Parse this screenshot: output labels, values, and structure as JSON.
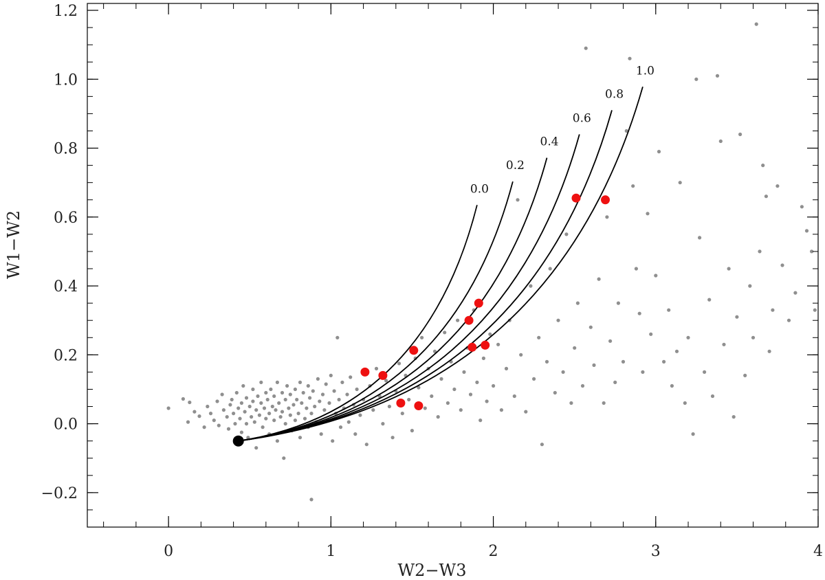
{
  "chart_data": {
    "type": "scatter",
    "title": "",
    "xlabel": "W2−W3",
    "ylabel": "W1−W2",
    "xlim": [
      -0.5,
      4.0
    ],
    "ylim": [
      -0.3,
      1.22
    ],
    "x_ticks": [
      {
        "value": 0,
        "label": "0"
      },
      {
        "value": 1,
        "label": "1"
      },
      {
        "value": 2,
        "label": "2"
      },
      {
        "value": 3,
        "label": "3"
      },
      {
        "value": 4,
        "label": "4"
      }
    ],
    "y_ticks": [
      {
        "value": -0.2,
        "label": "−0.2"
      },
      {
        "value": 0.0,
        "label": "0.0"
      },
      {
        "value": 0.2,
        "label": "0.2"
      },
      {
        "value": 0.4,
        "label": "0.4"
      },
      {
        "value": 0.6,
        "label": "0.6"
      },
      {
        "value": 0.8,
        "label": "0.8"
      },
      {
        "value": 1.0,
        "label": "1.0"
      },
      {
        "value": 1.2,
        "label": "1.2"
      }
    ],
    "x_minor_step": 0.2,
    "y_minor_step": 0.05,
    "grid": false,
    "colors": {
      "background_points": "#8f8f8f",
      "highlight_points": "#ee1111",
      "origin_point": "#000000",
      "curves": "#000000"
    },
    "origin_point": {
      "x": 0.43,
      "y": -0.05
    },
    "curves": [
      {
        "label": "0.0",
        "end": [
          1.9,
          0.635
        ]
      },
      {
        "label": "0.2",
        "end": [
          2.12,
          0.703
        ]
      },
      {
        "label": "0.4",
        "end": [
          2.33,
          0.772
        ]
      },
      {
        "label": "0.6",
        "end": [
          2.53,
          0.84
        ]
      },
      {
        "label": "0.8",
        "end": [
          2.73,
          0.91
        ]
      },
      {
        "label": "1.0",
        "end": [
          2.92,
          0.978
        ]
      }
    ],
    "highlight_points": [
      {
        "x": 1.21,
        "y": 0.15
      },
      {
        "x": 1.32,
        "y": 0.14
      },
      {
        "x": 1.51,
        "y": 0.213
      },
      {
        "x": 1.43,
        "y": 0.06
      },
      {
        "x": 1.54,
        "y": 0.052
      },
      {
        "x": 1.85,
        "y": 0.3
      },
      {
        "x": 1.91,
        "y": 0.35
      },
      {
        "x": 1.87,
        "y": 0.222
      },
      {
        "x": 1.95,
        "y": 0.228
      },
      {
        "x": 2.51,
        "y": 0.655
      },
      {
        "x": 2.69,
        "y": 0.65
      }
    ],
    "background_points": [
      [
        0.0,
        0.045
      ],
      [
        0.09,
        0.072
      ],
      [
        0.13,
        0.062
      ],
      [
        0.12,
        0.005
      ],
      [
        0.16,
        0.035
      ],
      [
        0.19,
        0.022
      ],
      [
        0.22,
        -0.01
      ],
      [
        0.24,
        0.05
      ],
      [
        0.26,
        0.03
      ],
      [
        0.28,
        0.01
      ],
      [
        0.3,
        0.065
      ],
      [
        0.31,
        -0.005
      ],
      [
        0.33,
        0.085
      ],
      [
        0.34,
        0.04
      ],
      [
        0.36,
        0.02
      ],
      [
        0.37,
        -0.015
      ],
      [
        0.38,
        0.055
      ],
      [
        0.39,
        0.07
      ],
      [
        0.4,
        0.03
      ],
      [
        0.41,
        0.0
      ],
      [
        0.42,
        0.09
      ],
      [
        0.43,
        0.045
      ],
      [
        0.44,
        0.015
      ],
      [
        0.45,
        -0.025
      ],
      [
        0.45,
        0.06
      ],
      [
        0.46,
        0.11
      ],
      [
        0.47,
        0.035
      ],
      [
        0.48,
        0.075
      ],
      [
        0.48,
        0.0
      ],
      [
        0.49,
        -0.04
      ],
      [
        0.5,
        0.05
      ],
      [
        0.51,
        0.02
      ],
      [
        0.52,
        0.1
      ],
      [
        0.52,
        0.065
      ],
      [
        0.53,
        0.005
      ],
      [
        0.54,
        0.04
      ],
      [
        0.54,
        -0.07
      ],
      [
        0.55,
        0.08
      ],
      [
        0.56,
        0.025
      ],
      [
        0.57,
        0.06
      ],
      [
        0.57,
        0.12
      ],
      [
        0.58,
        -0.01
      ],
      [
        0.59,
        0.045
      ],
      [
        0.6,
        0.09
      ],
      [
        0.6,
        0.015
      ],
      [
        0.61,
        0.07
      ],
      [
        0.62,
        0.03
      ],
      [
        0.62,
        -0.03
      ],
      [
        0.63,
        0.1
      ],
      [
        0.64,
        0.05
      ],
      [
        0.65,
        0.01
      ],
      [
        0.65,
        0.08
      ],
      [
        0.66,
        0.04
      ],
      [
        0.67,
        0.12
      ],
      [
        0.67,
        -0.05
      ],
      [
        0.68,
        0.06
      ],
      [
        0.69,
        0.02
      ],
      [
        0.7,
        0.09
      ],
      [
        0.7,
        0.035
      ],
      [
        0.71,
        -0.1
      ],
      [
        0.72,
        0.07
      ],
      [
        0.72,
        0.0
      ],
      [
        0.73,
        0.11
      ],
      [
        0.74,
        0.045
      ],
      [
        0.75,
        0.025
      ],
      [
        0.75,
        0.085
      ],
      [
        0.76,
        -0.02
      ],
      [
        0.77,
        0.055
      ],
      [
        0.78,
        0.1
      ],
      [
        0.78,
        0.01
      ],
      [
        0.79,
        0.07
      ],
      [
        0.8,
        0.03
      ],
      [
        0.81,
        0.12
      ],
      [
        0.81,
        -0.04
      ],
      [
        0.82,
        0.06
      ],
      [
        0.83,
        0.09
      ],
      [
        0.84,
        0.015
      ],
      [
        0.85,
        0.045
      ],
      [
        0.86,
        0.11
      ],
      [
        0.86,
        -0.01
      ],
      [
        0.87,
        0.075
      ],
      [
        0.88,
        0.03
      ],
      [
        0.88,
        -0.22
      ],
      [
        0.89,
        0.095
      ],
      [
        0.9,
        0.05
      ],
      [
        0.91,
        0.005
      ],
      [
        0.92,
        0.13
      ],
      [
        0.93,
        0.065
      ],
      [
        0.94,
        -0.03
      ],
      [
        0.95,
        0.085
      ],
      [
        0.96,
        0.04
      ],
      [
        0.97,
        0.115
      ],
      [
        0.98,
        0.01
      ],
      [
        0.99,
        0.06
      ],
      [
        1.0,
        0.14
      ],
      [
        1.01,
        -0.05
      ],
      [
        1.02,
        0.095
      ],
      [
        1.03,
        0.03
      ],
      [
        1.04,
        0.25
      ],
      [
        1.05,
        0.07
      ],
      [
        1.06,
        -0.01
      ],
      [
        1.07,
        0.12
      ],
      [
        1.08,
        0.045
      ],
      [
        1.1,
        0.085
      ],
      [
        1.11,
        0.005
      ],
      [
        1.12,
        0.135
      ],
      [
        1.14,
        0.055
      ],
      [
        1.15,
        -0.03
      ],
      [
        1.16,
        0.1
      ],
      [
        1.18,
        0.025
      ],
      [
        1.2,
        0.07
      ],
      [
        1.22,
        -0.06
      ],
      [
        1.24,
        0.11
      ],
      [
        1.26,
        0.04
      ],
      [
        1.28,
        0.16
      ],
      [
        1.3,
        0.08
      ],
      [
        1.32,
        0.0
      ],
      [
        1.34,
        0.125
      ],
      [
        1.36,
        0.05
      ],
      [
        1.38,
        -0.04
      ],
      [
        1.4,
        0.095
      ],
      [
        1.42,
        0.175
      ],
      [
        1.44,
        0.03
      ],
      [
        1.46,
        0.14
      ],
      [
        1.48,
        0.07
      ],
      [
        1.5,
        -0.02
      ],
      [
        1.52,
        0.19
      ],
      [
        1.54,
        0.105
      ],
      [
        1.56,
        0.25
      ],
      [
        1.58,
        0.045
      ],
      [
        1.6,
        0.16
      ],
      [
        1.62,
        0.08
      ],
      [
        1.64,
        0.21
      ],
      [
        1.66,
        0.02
      ],
      [
        1.68,
        0.13
      ],
      [
        1.7,
        0.265
      ],
      [
        1.72,
        0.06
      ],
      [
        1.74,
        0.18
      ],
      [
        1.76,
        0.1
      ],
      [
        1.78,
        0.3
      ],
      [
        1.8,
        0.04
      ],
      [
        1.82,
        0.15
      ],
      [
        1.84,
        0.22
      ],
      [
        1.86,
        0.085
      ],
      [
        1.88,
        0.33
      ],
      [
        1.9,
        0.12
      ],
      [
        1.92,
        0.01
      ],
      [
        1.94,
        0.19
      ],
      [
        1.96,
        0.065
      ],
      [
        1.98,
        0.26
      ],
      [
        2.0,
        0.11
      ],
      [
        2.03,
        0.23
      ],
      [
        2.05,
        0.04
      ],
      [
        2.08,
        0.16
      ],
      [
        2.1,
        0.3
      ],
      [
        2.13,
        0.08
      ],
      [
        2.15,
        0.65
      ],
      [
        2.17,
        0.2
      ],
      [
        2.2,
        0.035
      ],
      [
        2.23,
        0.4
      ],
      [
        2.25,
        0.13
      ],
      [
        2.28,
        0.25
      ],
      [
        2.3,
        -0.06
      ],
      [
        2.33,
        0.18
      ],
      [
        2.35,
        0.45
      ],
      [
        2.38,
        0.09
      ],
      [
        2.4,
        0.3
      ],
      [
        2.43,
        0.15
      ],
      [
        2.45,
        0.55
      ],
      [
        2.48,
        0.06
      ],
      [
        2.5,
        0.22
      ],
      [
        2.52,
        0.35
      ],
      [
        2.55,
        0.11
      ],
      [
        2.57,
        1.09
      ],
      [
        2.6,
        0.28
      ],
      [
        2.62,
        0.17
      ],
      [
        2.65,
        0.42
      ],
      [
        2.68,
        0.06
      ],
      [
        2.7,
        0.6
      ],
      [
        2.72,
        0.24
      ],
      [
        2.75,
        0.12
      ],
      [
        2.77,
        0.35
      ],
      [
        2.8,
        0.18
      ],
      [
        2.82,
        0.85
      ],
      [
        2.84,
        1.06
      ],
      [
        2.86,
        0.69
      ],
      [
        2.88,
        0.45
      ],
      [
        2.9,
        0.32
      ],
      [
        2.92,
        0.15
      ],
      [
        2.95,
        0.61
      ],
      [
        2.97,
        0.26
      ],
      [
        3.0,
        0.43
      ],
      [
        3.02,
        0.79
      ],
      [
        3.05,
        0.18
      ],
      [
        3.08,
        0.33
      ],
      [
        3.1,
        0.11
      ],
      [
        3.13,
        0.21
      ],
      [
        3.15,
        0.7
      ],
      [
        3.18,
        0.06
      ],
      [
        3.2,
        0.25
      ],
      [
        3.23,
        -0.03
      ],
      [
        3.25,
        1.0
      ],
      [
        3.27,
        0.54
      ],
      [
        3.3,
        0.15
      ],
      [
        3.33,
        0.36
      ],
      [
        3.35,
        0.08
      ],
      [
        3.38,
        1.01
      ],
      [
        3.4,
        0.82
      ],
      [
        3.42,
        0.23
      ],
      [
        3.45,
        0.45
      ],
      [
        3.48,
        0.02
      ],
      [
        3.5,
        0.31
      ],
      [
        3.52,
        0.84
      ],
      [
        3.55,
        0.14
      ],
      [
        3.58,
        0.4
      ],
      [
        3.6,
        0.25
      ],
      [
        3.62,
        1.16
      ],
      [
        3.64,
        0.5
      ],
      [
        3.66,
        0.75
      ],
      [
        3.68,
        0.66
      ],
      [
        3.7,
        0.21
      ],
      [
        3.72,
        0.33
      ],
      [
        3.75,
        0.69
      ],
      [
        3.78,
        0.46
      ],
      [
        3.82,
        0.3
      ],
      [
        3.86,
        0.38
      ],
      [
        3.9,
        0.63
      ],
      [
        3.93,
        0.56
      ],
      [
        3.96,
        0.5
      ],
      [
        3.98,
        0.33
      ]
    ]
  }
}
